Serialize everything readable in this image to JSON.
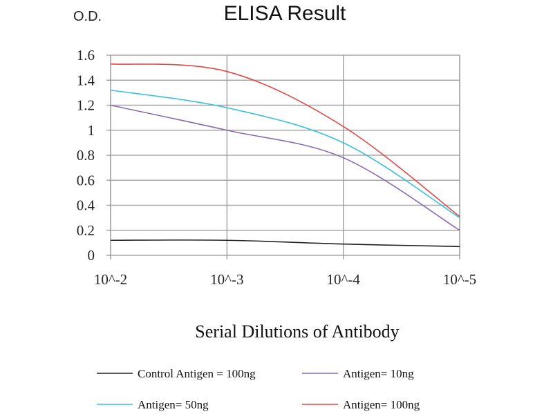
{
  "chart_data": {
    "type": "line",
    "title": "ELISA Result",
    "ylabel": "O.D.",
    "xlabel": "Serial Dilutions of Antibody",
    "x_ticks": [
      "10^-2",
      "10^-3",
      "10^-4",
      "10^-5"
    ],
    "y_ticks": [
      "0",
      "0.2",
      "0.4",
      "0.6",
      "0.8",
      "1",
      "1.2",
      "1.4",
      "1.6"
    ],
    "ylim": [
      0,
      1.6
    ],
    "grid": true,
    "legend_placement": "bottom",
    "series": [
      {
        "name": "Control Antigen = 100ng",
        "color": "#222222",
        "values": [
          0.12,
          0.12,
          0.09,
          0.07
        ]
      },
      {
        "name": "Antigen= 10ng",
        "color": "#8a6bb0",
        "values": [
          1.2,
          1.0,
          0.78,
          0.2
        ]
      },
      {
        "name": "Antigen= 50ng",
        "color": "#3cc0dc",
        "values": [
          1.32,
          1.18,
          0.9,
          0.3
        ]
      },
      {
        "name": "Antigen= 100ng",
        "color": "#e04848",
        "values": [
          1.53,
          1.47,
          1.03,
          0.31
        ]
      }
    ]
  }
}
